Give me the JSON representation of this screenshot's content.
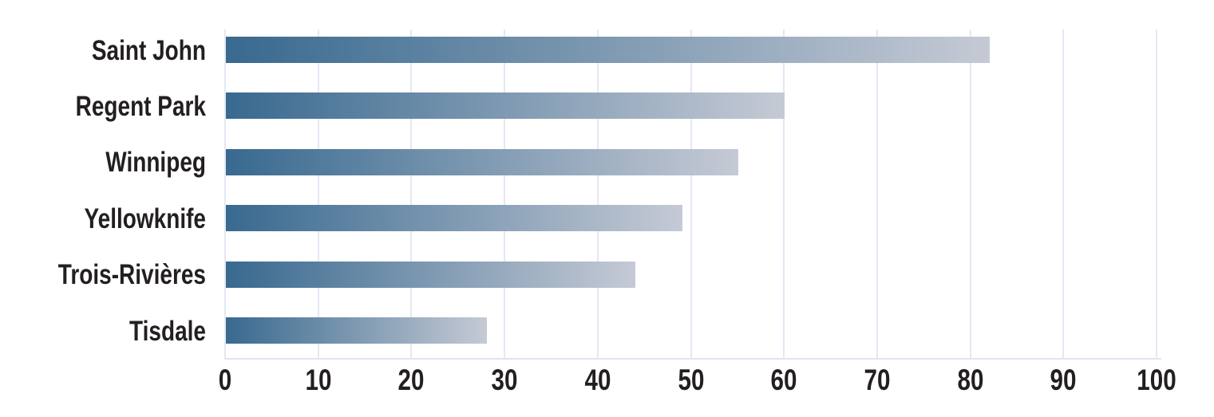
{
  "chart_data": {
    "type": "bar",
    "orientation": "horizontal",
    "title": "",
    "xlabel": "",
    "ylabel": "",
    "categories": [
      "Saint John",
      "Regent Park",
      "Winnipeg",
      "Yellowknife",
      "Trois-Rivières",
      "Tisdale"
    ],
    "values": [
      82,
      60,
      55,
      49,
      44,
      28
    ],
    "xlim": [
      0,
      100
    ],
    "x_ticks": [
      0,
      10,
      20,
      30,
      40,
      50,
      60,
      70,
      80,
      90,
      100
    ],
    "x_tick_labels": [
      "0",
      "10",
      "20",
      "30",
      "40",
      "50",
      "60",
      "70",
      "80",
      "90",
      "100"
    ],
    "grid": "vertical-gridlines-on",
    "legend": "none"
  },
  "style": {
    "background": "#ffffff",
    "bar_gradient_start": "#38698f",
    "bar_gradient_end": "#c5cad5",
    "gridline_color": "#e4e8f4",
    "axis_line_color": "#dfe4f2",
    "label_color": "#231f20"
  }
}
